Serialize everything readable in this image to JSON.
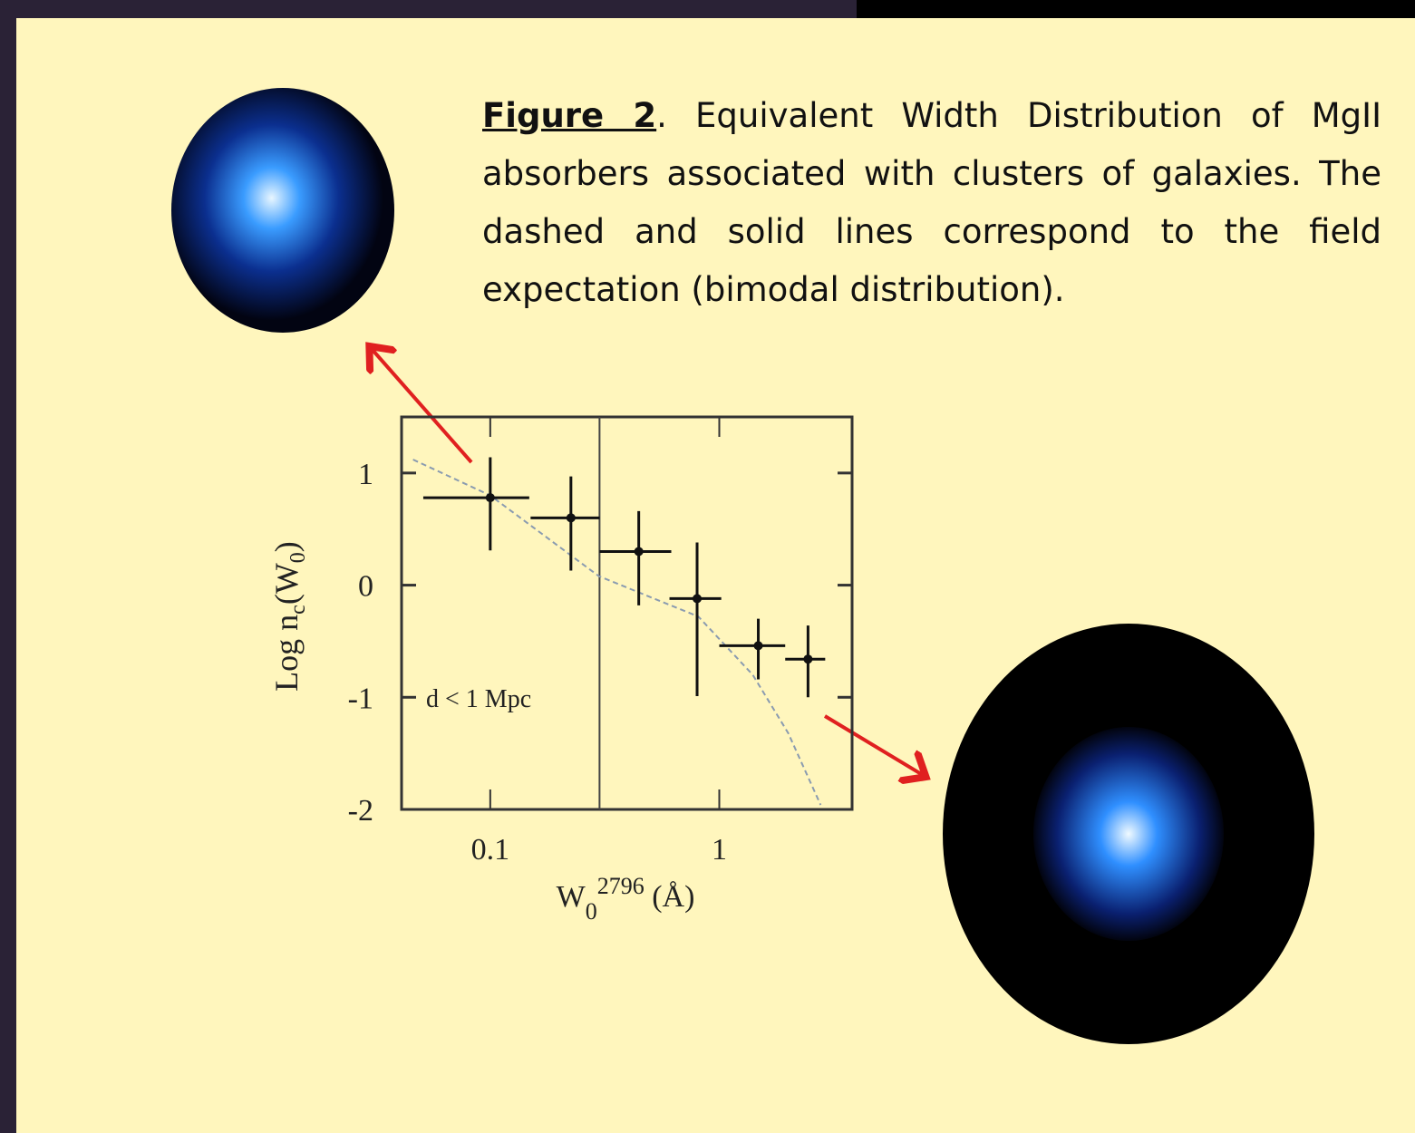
{
  "caption": {
    "label": "Figure 2",
    "text": ". Equivalent Width Distribution of  MgII absorbers associated with clusters of galaxies. The dashed and solid lines correspond to the field expectation (bimodal distribution)."
  },
  "chart_data": {
    "type": "errorbar",
    "xscale": "log",
    "xlim": [
      0.041,
      3.8
    ],
    "ylim": [
      -2,
      1.5
    ],
    "xticks": [
      0.1,
      1
    ],
    "yticks": [
      -2,
      -1,
      0,
      1
    ],
    "ylabel_parts": [
      "Log n",
      "c",
      "(W",
      "0",
      ")"
    ],
    "xlabel_parts": [
      "W",
      "0",
      "2796",
      " (Å)"
    ],
    "annotation": "d < 1 Mpc",
    "vline_x": 0.3,
    "color": "#111111",
    "points": [
      {
        "x": 0.1,
        "y": 0.78,
        "x_low": 0.051,
        "x_high": 0.148,
        "y_low": 0.31,
        "y_high": 1.14
      },
      {
        "x": 0.225,
        "y": 0.6,
        "x_low": 0.15,
        "x_high": 0.3,
        "y_low": 0.13,
        "y_high": 0.97
      },
      {
        "x": 0.445,
        "y": 0.3,
        "x_low": 0.3,
        "x_high": 0.617,
        "y_low": -0.18,
        "y_high": 0.66
      },
      {
        "x": 0.8,
        "y": -0.12,
        "x_low": 0.606,
        "x_high": 1.02,
        "y_low": -0.99,
        "y_high": 0.38
      },
      {
        "x": 1.48,
        "y": -0.54,
        "x_low": 1.0,
        "x_high": 1.94,
        "y_low": -0.84,
        "y_high": -0.3
      },
      {
        "x": 2.44,
        "y": -0.66,
        "x_low": 1.94,
        "x_high": 2.9,
        "y_low": -1.0,
        "y_high": -0.36
      }
    ],
    "curve": {
      "color": "#8a9bb0",
      "x": [
        0.046,
        0.1,
        0.298,
        0.81,
        1.4,
        2.0,
        2.77
      ],
      "y": [
        1.12,
        0.8,
        0.08,
        -0.28,
        -0.8,
        -1.32,
        -1.96
      ]
    }
  }
}
